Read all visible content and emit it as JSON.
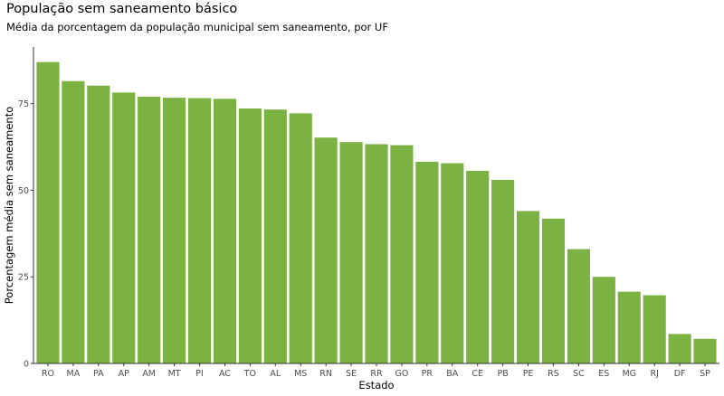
{
  "chart_data": {
    "type": "bar",
    "title": "População sem saneamento básico",
    "subtitle": "Média da porcentagem da população municipal sem saneamento, por UF",
    "xlabel": "Estado",
    "ylabel": "Porcentagem média sem saneamento",
    "categories": [
      "RO",
      "MA",
      "PA",
      "AP",
      "AM",
      "MT",
      "PI",
      "AC",
      "TO",
      "AL",
      "MS",
      "RN",
      "SE",
      "RR",
      "GO",
      "PR",
      "BA",
      "CE",
      "PB",
      "PE",
      "RS",
      "SC",
      "ES",
      "MG",
      "RJ",
      "DF",
      "SP"
    ],
    "values": [
      87.0,
      81.5,
      80.2,
      78.2,
      77.0,
      76.7,
      76.6,
      76.4,
      73.6,
      73.3,
      72.2,
      65.2,
      63.9,
      63.3,
      63.0,
      58.2,
      57.8,
      55.6,
      53.0,
      44.0,
      41.8,
      33.0,
      25.0,
      20.7,
      19.7,
      8.5,
      7.1
    ],
    "yticks": [
      0,
      25,
      50,
      75
    ],
    "ylim": [
      0,
      91.35
    ],
    "bar_color": "#7bb241",
    "grid": false,
    "legend": "none"
  }
}
